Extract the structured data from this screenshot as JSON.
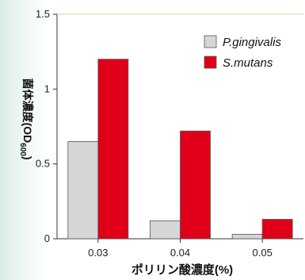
{
  "chart_data": {
    "type": "bar",
    "categories": [
      "0.03",
      "0.04",
      "0.05"
    ],
    "series": [
      {
        "name": "P.gingivalis",
        "values": [
          0.65,
          0.12,
          0.03
        ],
        "color": "#d6d6d6"
      },
      {
        "name": "S.mutans",
        "values": [
          1.2,
          0.72,
          0.13
        ],
        "color": "#e0001a"
      }
    ],
    "ylim": [
      0,
      1.5
    ],
    "yticks": [
      "0",
      "0.5",
      "1",
      "1.5"
    ],
    "ylabel_main": "菌体濃度",
    "ylabel_paren_open": "(",
    "ylabel_od": "OD",
    "ylabel_sub": "600",
    "ylabel_paren_close": ")",
    "xlabel": "ポリリン酸濃度(%)",
    "legend_position": "top-right",
    "grid": false
  }
}
